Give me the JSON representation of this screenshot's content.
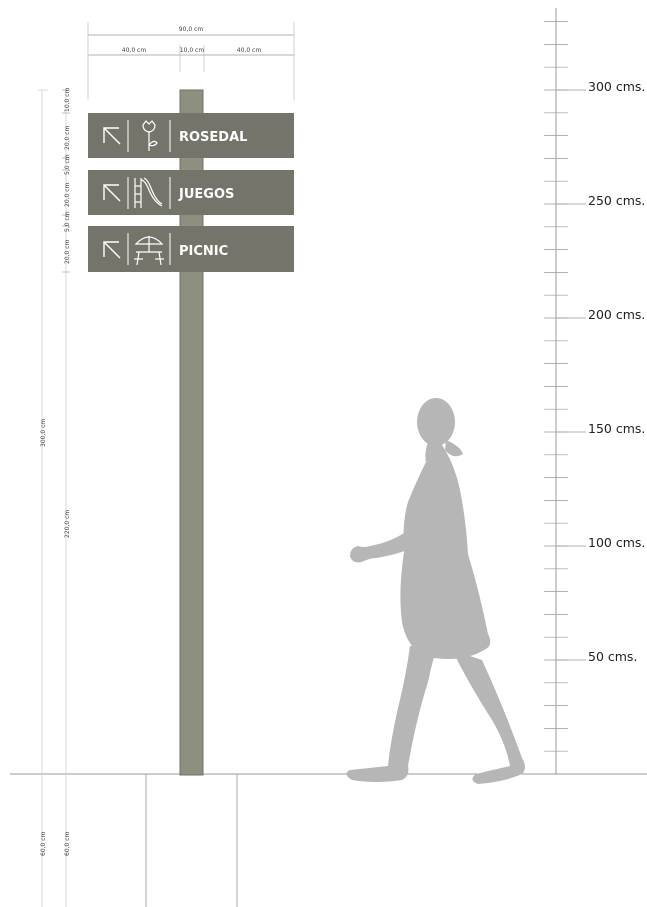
{
  "colors": {
    "sign_panel": "#75746a",
    "post": "#8e8f80",
    "post_edge": "#6f7066",
    "silhouette": "#b6b6b6",
    "lines": "#9a9a9a",
    "icon_stroke": "#ffffff"
  },
  "dimensions": {
    "total_width": "90,0 cm",
    "left_panel_width": "40,0 cm",
    "post_width": "10,0 cm",
    "right_panel_width": "40,0 cm",
    "top_cap": "10,0 cm",
    "panel_1_height": "20,0 cm",
    "gap_1": "5,0 cm",
    "panel_2_height": "20,0 cm",
    "gap_2": "5,0 cm",
    "panel_3_height": "20,0 cm",
    "total_height": "300,0 cm",
    "lower_height": "220,0 cm",
    "foundation_left": "60,0 cm",
    "foundation_right": "60,0 cm"
  },
  "signs": [
    {
      "label": "ROSEDAL",
      "arrow_icon": "arrow-up-left-icon",
      "icon": "flower-icon"
    },
    {
      "label": "JUEGOS",
      "arrow_icon": "arrow-up-left-icon",
      "icon": "slide-icon"
    },
    {
      "label": "PICNIC",
      "arrow_icon": "arrow-up-left-icon",
      "icon": "picnic-table-icon"
    }
  ],
  "scale": {
    "labels": [
      "300 cms.",
      "250 cms.",
      "200 cms.",
      "150 cms.",
      "100 cms.",
      "50 cms."
    ]
  },
  "figure": {
    "icon": "walking-person-icon"
  }
}
